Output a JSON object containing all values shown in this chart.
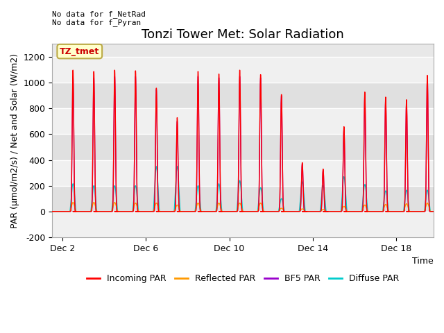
{
  "title": "Tonzi Tower Met: Solar Radiation",
  "ylabel": "PAR (μmol/m2/s) / Net and Solar (W/m2)",
  "xlabel": "Time",
  "ylim": [
    -200,
    1300
  ],
  "yticks": [
    -200,
    0,
    200,
    400,
    600,
    800,
    1000,
    1200
  ],
  "x_tick_labels": [
    "Dec 2",
    "Dec 6",
    "Dec 10",
    "Dec 14",
    "Dec 18"
  ],
  "x_tick_positions": [
    2,
    6,
    10,
    14,
    18
  ],
  "annotation_text": "No data for f_NetRad\nNo data for f_Pyran",
  "box_label": "TZ_tmet",
  "box_color": "#ffffcc",
  "box_edge_color": "#bbaa44",
  "box_text_color": "#cc0000",
  "colors": {
    "incoming_par": "#ff0000",
    "reflected_par": "#ff9900",
    "bf5_par": "#9900cc",
    "diffuse_par": "#00cccc"
  },
  "legend_entries": [
    "Incoming PAR",
    "Reflected PAR",
    "BF5 PAR",
    "Diffuse PAR"
  ],
  "figure_bg": "#ffffff",
  "plot_bg": "#e8e8e8",
  "stripe_light": "#f0f0f0",
  "stripe_dark": "#e0e0e0",
  "title_fontsize": 13,
  "label_fontsize": 9,
  "day_peaks": {
    "incoming": [
      1100,
      1090,
      1100,
      1095,
      960,
      730,
      1090,
      1070,
      1100,
      1065,
      910,
      380,
      330,
      660,
      930,
      890,
      870,
      1060
    ],
    "bf5": [
      1050,
      1040,
      1050,
      1050,
      950,
      700,
      1050,
      1040,
      1050,
      1040,
      900,
      370,
      320,
      640,
      900,
      870,
      850,
      1040
    ],
    "diffuse": [
      215,
      200,
      200,
      200,
      350,
      350,
      200,
      215,
      240,
      185,
      100,
      230,
      200,
      270,
      210,
      160,
      165,
      165
    ],
    "reflected": [
      70,
      70,
      70,
      65,
      65,
      50,
      65,
      65,
      65,
      65,
      25,
      20,
      15,
      40,
      50,
      55,
      60,
      65
    ]
  },
  "start_day": 2,
  "num_days": 18
}
